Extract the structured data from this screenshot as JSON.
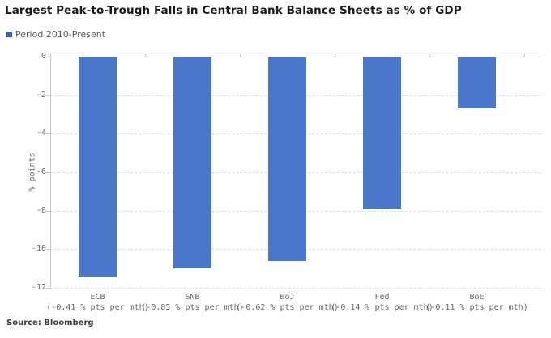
{
  "header": {
    "title": "Largest Peak-to-Trough Falls in Central Bank Balance Sheets as % of GDP"
  },
  "legend": {
    "label": "Period 2010-Present",
    "marker_color": "#3a66b5"
  },
  "footer": {
    "source": "Source: Bloomberg"
  },
  "colors": {
    "bar": "#4a77c9",
    "grid": "#dedede",
    "axis": "#c9c9c9",
    "tick_text": "#666666",
    "title_text": "#1a1a1a",
    "legend_text": "#595959",
    "source_text": "#3d3d3d"
  },
  "chart_data": {
    "type": "bar",
    "title": "Largest Peak-to-Trough Falls in Central Bank Balance Sheets as % of GDP",
    "categories": [
      "ECB",
      "SNB",
      "BoJ",
      "Fed",
      "BoE"
    ],
    "category_sublabels": [
      "(-0.41 % pts per mth)",
      "(-0.85 % pts per mth)",
      "(-0.62 % pts per mth)",
      "(-0.14 % pts per mth)",
      "(-0.11 % pts per mth)"
    ],
    "series": [
      {
        "name": "Period 2010-Present",
        "values": [
          -11.4,
          -11.0,
          -10.6,
          -7.9,
          -2.7
        ]
      }
    ],
    "xlabel": "",
    "ylabel": "% points",
    "ylim": [
      -12,
      0
    ],
    "yticks": [
      0,
      -2,
      -4,
      -6,
      -8,
      -10,
      -12
    ],
    "grid": "horizontal-dashed",
    "legend_position": "top-left",
    "bar_color": "#4a77c9"
  }
}
